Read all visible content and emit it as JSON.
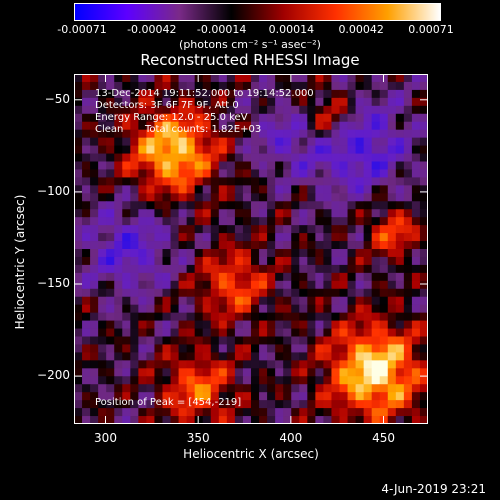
{
  "colorbar": {
    "tick_labels": [
      "-0.00071",
      "-0.00042",
      "-0.00014",
      "0.00014",
      "0.00042",
      "0.00071"
    ],
    "units": "(photons cm⁻² s⁻¹ asec⁻²)",
    "colors": [
      "#0000ff",
      "#5d00ff",
      "#7a2a88",
      "#000000",
      "#a00000",
      "#ff3000",
      "#ffa000",
      "#ffffff"
    ]
  },
  "title": "Reconstructed RHESSI Image",
  "annotations": {
    "time_range": "13-Dec-2014 19:11:52.000 to 19:14:52.000",
    "detectors": "Detectors: 3F 6F 7F 9F, Att 0",
    "energy_range": "Energy Range: 12.0 - 25.0 keV",
    "clean": "Clean",
    "total_counts": "Total counts: 1.82E+03",
    "peak_position": "Position of Peak = [454,-219]"
  },
  "footer_date": "4-Jun-2019 23:21",
  "chart_data": {
    "type": "heatmap",
    "title": "Reconstructed RHESSI Image",
    "xlabel": "Heliocentric X (arcsec)",
    "ylabel": "Heliocentric Y (arcsec)",
    "xlim": [
      283,
      474
    ],
    "ylim": [
      -226,
      -36
    ],
    "x_ticks": [
      300,
      350,
      400,
      450
    ],
    "y_ticks": [
      -50,
      -100,
      -150,
      -200
    ],
    "x_tick_labels": [
      "300",
      "350",
      "400",
      "450"
    ],
    "y_tick_labels": [
      "−50",
      "−100",
      "−150",
      "−200"
    ],
    "colorbar_range": [
      -0.00071,
      0.00071
    ],
    "peak": [
      454,
      -219
    ]
  }
}
